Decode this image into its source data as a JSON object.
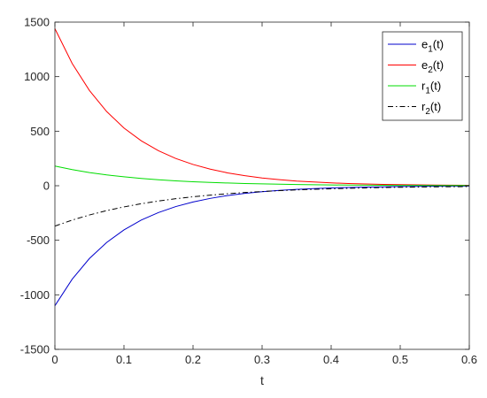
{
  "chart_data": {
    "type": "line",
    "title": "",
    "xlabel": "t",
    "ylabel": "",
    "xlim": [
      0,
      0.6
    ],
    "ylim": [
      -1500,
      1500
    ],
    "xticks": [
      0,
      0.1,
      0.2,
      0.3,
      0.4,
      0.5,
      0.6
    ],
    "xtick_labels": [
      "0",
      "0.1",
      "0.2",
      "0.3",
      "0.4",
      "0.5",
      "0.6"
    ],
    "yticks": [
      -1500,
      -1000,
      -500,
      0,
      500,
      1000,
      1500
    ],
    "ytick_labels": [
      "-1500",
      "-1000",
      "-500",
      "0",
      "500",
      "1000",
      "1500"
    ],
    "grid": false,
    "legend_position": "top-right",
    "x": [
      0,
      0.025,
      0.05,
      0.075,
      0.1,
      0.125,
      0.15,
      0.175,
      0.2,
      0.225,
      0.25,
      0.275,
      0.3,
      0.325,
      0.35,
      0.375,
      0.4,
      0.425,
      0.45,
      0.475,
      0.5,
      0.525,
      0.55,
      0.575,
      0.6
    ],
    "series": [
      {
        "name": "e",
        "name_sub": "1",
        "name_suffix": "(t)",
        "color": "#0000cc",
        "dash": "",
        "values": [
          -1100,
          -857,
          -667,
          -520,
          -405,
          -315,
          -246,
          -191,
          -149,
          -116,
          -90,
          -70,
          -55,
          -43,
          -33,
          -26,
          -20,
          -16,
          -12,
          -10,
          -7,
          -6,
          -4,
          -3,
          -3
        ]
      },
      {
        "name": "e",
        "name_sub": "2",
        "name_suffix": "(t)",
        "color": "#ff0000",
        "dash": "",
        "values": [
          1440,
          1121,
          873,
          680,
          529,
          412,
          321,
          250,
          195,
          152,
          118,
          92,
          71,
          56,
          43,
          34,
          26,
          20,
          16,
          12,
          10,
          8,
          6,
          5,
          4
        ]
      },
      {
        "name": "r",
        "name_sub": "1",
        "name_suffix": "(t)",
        "color": "#00dd00",
        "dash": "",
        "values": [
          180,
          148,
          121,
          99,
          82,
          67,
          55,
          45,
          37,
          30,
          25,
          20,
          17,
          14,
          11,
          9,
          7,
          6,
          5,
          4,
          3,
          3,
          2,
          2,
          2
        ]
      },
      {
        "name": "r",
        "name_sub": "2",
        "name_suffix": "(t)",
        "color": "#000000",
        "dash": "6,3,1.5,3",
        "values": [
          -370,
          -315,
          -268,
          -228,
          -194,
          -165,
          -140,
          -119,
          -101,
          -86,
          -73,
          -62,
          -53,
          -45,
          -38,
          -33,
          -28,
          -24,
          -20,
          -17,
          -14,
          -12,
          -10,
          -9,
          -8
        ]
      }
    ]
  }
}
